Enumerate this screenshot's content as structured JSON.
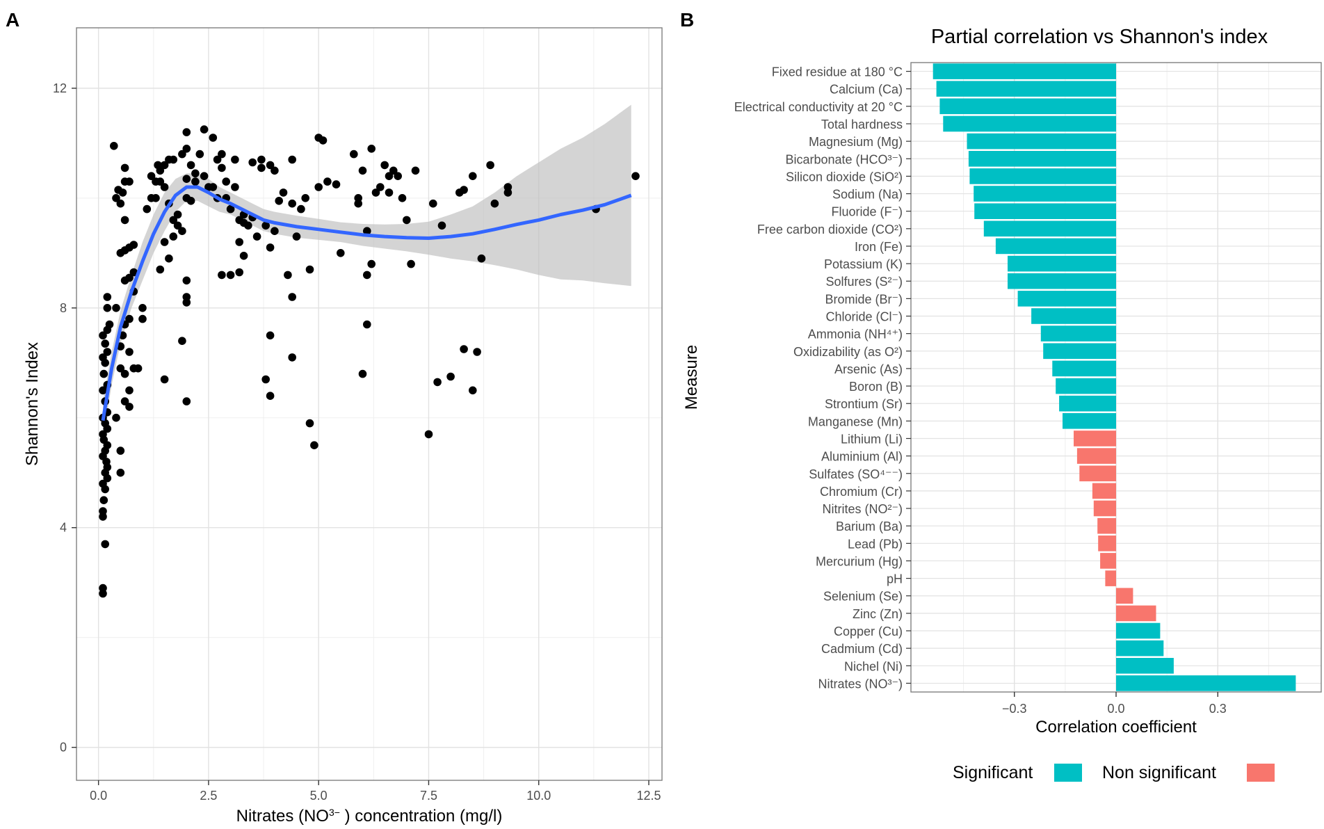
{
  "panel_labels": {
    "a": "A",
    "b": "B"
  },
  "chart_data": [
    {
      "type": "scatter",
      "panel": "A",
      "title": "",
      "xlabel_main": "Nitrates (NO",
      "xlabel_sup": "3−",
      "xlabel_rest": "  ) concentration (mg/l)",
      "ylabel": "Shannon's Index",
      "xlim": [
        -0.5,
        12.8
      ],
      "ylim": [
        -0.6,
        13.1
      ],
      "xticks": [
        0,
        2.5,
        5,
        7.5,
        10,
        12.5
      ],
      "xtick_labels": [
        "0.0",
        "2.5",
        "5.0",
        "7.5",
        "10.0",
        "12.5"
      ],
      "yticks": [
        0,
        4,
        8,
        12
      ],
      "ytick_labels": [
        "0",
        "4",
        "8",
        "12"
      ],
      "grid": true,
      "colors": {
        "points": "#000000",
        "smooth": "#3366ff",
        "ribbon": "#bdbdbd",
        "grid": "#e2e2e2",
        "panel_border": "#7f7f7f"
      },
      "points": [
        [
          0.1,
          2.8
        ],
        [
          0.1,
          2.9
        ],
        [
          0.15,
          3.7
        ],
        [
          0.1,
          4.2
        ],
        [
          0.1,
          4.3
        ],
        [
          0.12,
          4.5
        ],
        [
          0.15,
          4.7
        ],
        [
          0.1,
          4.8
        ],
        [
          0.2,
          4.9
        ],
        [
          0.15,
          5.0
        ],
        [
          0.2,
          5.1
        ],
        [
          0.18,
          5.2
        ],
        [
          0.1,
          5.3
        ],
        [
          0.15,
          5.4
        ],
        [
          0.2,
          5.5
        ],
        [
          0.12,
          5.6
        ],
        [
          0.1,
          5.7
        ],
        [
          0.2,
          5.8
        ],
        [
          0.15,
          5.9
        ],
        [
          0.1,
          6.0
        ],
        [
          0.2,
          6.1
        ],
        [
          0.15,
          6.3
        ],
        [
          0.1,
          6.5
        ],
        [
          0.2,
          6.6
        ],
        [
          0.12,
          6.8
        ],
        [
          0.15,
          7.0
        ],
        [
          0.1,
          7.1
        ],
        [
          0.2,
          7.2
        ],
        [
          0.15,
          7.35
        ],
        [
          0.1,
          7.5
        ],
        [
          0.2,
          7.6
        ],
        [
          0.25,
          7.7
        ],
        [
          0.2,
          8.0
        ],
        [
          0.2,
          8.2
        ],
        [
          0.5,
          5.0
        ],
        [
          0.5,
          5.4
        ],
        [
          0.4,
          6.0
        ],
        [
          0.6,
          6.3
        ],
        [
          0.7,
          6.2
        ],
        [
          0.7,
          6.5
        ],
        [
          0.6,
          6.8
        ],
        [
          0.5,
          6.9
        ],
        [
          0.8,
          6.9
        ],
        [
          0.9,
          6.9
        ],
        [
          0.7,
          7.2
        ],
        [
          0.5,
          7.3
        ],
        [
          0.55,
          7.5
        ],
        [
          0.6,
          7.7
        ],
        [
          0.7,
          7.8
        ],
        [
          0.4,
          8.0
        ],
        [
          0.8,
          8.3
        ],
        [
          0.6,
          8.5
        ],
        [
          0.7,
          8.55
        ],
        [
          0.8,
          8.65
        ],
        [
          0.5,
          9.0
        ],
        [
          0.6,
          9.05
        ],
        [
          0.7,
          9.1
        ],
        [
          0.8,
          9.15
        ],
        [
          0.6,
          9.6
        ],
        [
          0.5,
          9.9
        ],
        [
          0.4,
          10.0
        ],
        [
          0.55,
          10.1
        ],
        [
          0.45,
          10.15
        ],
        [
          0.6,
          10.3
        ],
        [
          0.35,
          10.95
        ],
        [
          0.7,
          10.3
        ],
        [
          0.6,
          10.55
        ],
        [
          1.0,
          7.8
        ],
        [
          1.0,
          8.0
        ],
        [
          1.1,
          9.8
        ],
        [
          1.2,
          10.0
        ],
        [
          1.2,
          10.4
        ],
        [
          1.3,
          10.3
        ],
        [
          1.35,
          10.6
        ],
        [
          1.4,
          10.5
        ],
        [
          1.5,
          10.2
        ],
        [
          1.5,
          10.6
        ],
        [
          1.6,
          10.7
        ],
        [
          1.6,
          9.9
        ],
        [
          1.7,
          9.6
        ],
        [
          1.8,
          9.5
        ],
        [
          1.9,
          9.4
        ],
        [
          1.7,
          9.3
        ],
        [
          1.5,
          9.2
        ],
        [
          1.4,
          8.7
        ],
        [
          1.6,
          8.9
        ],
        [
          1.5,
          6.7
        ],
        [
          1.8,
          9.7
        ],
        [
          1.9,
          10.8
        ],
        [
          2.0,
          10.9
        ],
        [
          2.0,
          11.2
        ],
        [
          2.1,
          10.6
        ],
        [
          2.2,
          10.3
        ],
        [
          2.1,
          9.95
        ],
        [
          2.0,
          10.0
        ],
        [
          2.3,
          10.8
        ],
        [
          2.4,
          11.25
        ],
        [
          2.4,
          10.4
        ],
        [
          2.5,
          10.2
        ],
        [
          2.6,
          11.1
        ],
        [
          2.7,
          10.0
        ],
        [
          2.8,
          10.55
        ],
        [
          2.9,
          10.3
        ],
        [
          3.0,
          9.8
        ],
        [
          3.1,
          10.2
        ],
        [
          3.2,
          9.6
        ],
        [
          3.3,
          9.7
        ],
        [
          3.3,
          9.55
        ],
        [
          3.4,
          9.5
        ],
        [
          3.5,
          9.65
        ],
        [
          3.2,
          9.2
        ],
        [
          3.3,
          8.95
        ],
        [
          2.8,
          10.8
        ],
        [
          3.6,
          9.3
        ],
        [
          3.8,
          9.5
        ],
        [
          3.9,
          9.1
        ],
        [
          4.0,
          9.4
        ],
        [
          4.1,
          9.95
        ],
        [
          4.2,
          10.1
        ],
        [
          4.4,
          9.9
        ],
        [
          4.5,
          9.3
        ],
        [
          4.6,
          9.8
        ],
        [
          4.7,
          10.0
        ],
        [
          4.8,
          8.7
        ],
        [
          4.3,
          8.6
        ],
        [
          4.4,
          8.2
        ],
        [
          4.4,
          7.1
        ],
        [
          3.8,
          6.7
        ],
        [
          3.9,
          6.4
        ],
        [
          3.9,
          7.5
        ],
        [
          2.0,
          6.3
        ],
        [
          2.0,
          8.1
        ],
        [
          2.0,
          8.2
        ],
        [
          2.0,
          8.5
        ],
        [
          1.9,
          7.4
        ],
        [
          2.8,
          8.6
        ],
        [
          3.0,
          8.6
        ],
        [
          3.2,
          8.65
        ],
        [
          5.0,
          11.1
        ],
        [
          5.1,
          11.05
        ],
        [
          5.0,
          10.2
        ],
        [
          5.2,
          10.3
        ],
        [
          5.4,
          10.25
        ],
        [
          5.5,
          9.0
        ],
        [
          5.8,
          10.8
        ],
        [
          5.9,
          10.0
        ],
        [
          5.9,
          9.9
        ],
        [
          6.0,
          10.5
        ],
        [
          6.1,
          9.4
        ],
        [
          6.1,
          8.6
        ],
        [
          6.2,
          8.8
        ],
        [
          6.2,
          10.9
        ],
        [
          6.3,
          10.1
        ],
        [
          6.4,
          10.2
        ],
        [
          6.5,
          10.6
        ],
        [
          6.6,
          10.1
        ],
        [
          6.6,
          10.4
        ],
        [
          6.7,
          10.5
        ],
        [
          6.8,
          10.4
        ],
        [
          6.9,
          10.0
        ],
        [
          7.0,
          9.6
        ],
        [
          7.1,
          8.8
        ],
        [
          7.2,
          10.5
        ],
        [
          6.1,
          7.7
        ],
        [
          6.0,
          6.8
        ],
        [
          4.8,
          5.9
        ],
        [
          4.9,
          5.5
        ],
        [
          7.5,
          5.7
        ],
        [
          7.7,
          6.65
        ],
        [
          8.0,
          6.75
        ],
        [
          8.2,
          10.1
        ],
        [
          8.3,
          10.15
        ],
        [
          8.3,
          7.25
        ],
        [
          8.5,
          10.4
        ],
        [
          8.6,
          7.2
        ],
        [
          8.7,
          8.9
        ],
        [
          8.5,
          6.5
        ],
        [
          8.9,
          10.6
        ],
        [
          9.0,
          9.9
        ],
        [
          9.3,
          10.1
        ],
        [
          9.3,
          10.2
        ],
        [
          7.8,
          9.5
        ],
        [
          7.6,
          9.9
        ],
        [
          11.3,
          9.8
        ],
        [
          12.2,
          10.4
        ],
        [
          2.0,
          10.35
        ],
        [
          2.2,
          10.45
        ],
        [
          1.3,
          10.0
        ],
        [
          1.4,
          10.3
        ],
        [
          1.7,
          10.7
        ],
        [
          2.7,
          10.7
        ],
        [
          3.1,
          10.7
        ],
        [
          3.5,
          10.65
        ],
        [
          3.7,
          10.7
        ],
        [
          3.9,
          10.6
        ],
        [
          4.0,
          10.5
        ],
        [
          4.4,
          10.7
        ],
        [
          3.7,
          10.55
        ],
        [
          2.6,
          10.2
        ],
        [
          2.9,
          10.0
        ]
      ],
      "smooth": [
        [
          0.1,
          5.95
        ],
        [
          0.3,
          6.9
        ],
        [
          0.5,
          7.65
        ],
        [
          0.75,
          8.3
        ],
        [
          1.0,
          8.85
        ],
        [
          1.25,
          9.35
        ],
        [
          1.5,
          9.75
        ],
        [
          1.75,
          10.05
        ],
        [
          2.0,
          10.2
        ],
        [
          2.25,
          10.2
        ],
        [
          2.5,
          10.1
        ],
        [
          2.75,
          9.98
        ],
        [
          3.0,
          9.9
        ],
        [
          3.25,
          9.8
        ],
        [
          3.5,
          9.7
        ],
        [
          3.75,
          9.6
        ],
        [
          4.0,
          9.55
        ],
        [
          4.5,
          9.48
        ],
        [
          5.0,
          9.43
        ],
        [
          5.5,
          9.38
        ],
        [
          6.0,
          9.33
        ],
        [
          6.5,
          9.3
        ],
        [
          7.0,
          9.28
        ],
        [
          7.5,
          9.27
        ],
        [
          8.0,
          9.3
        ],
        [
          8.5,
          9.35
        ],
        [
          9.0,
          9.43
        ],
        [
          9.5,
          9.52
        ],
        [
          10.0,
          9.6
        ],
        [
          10.5,
          9.7
        ],
        [
          11.0,
          9.78
        ],
        [
          11.5,
          9.88
        ],
        [
          12.1,
          10.05
        ]
      ],
      "ribbon_upper": [
        [
          0.1,
          6.3
        ],
        [
          0.3,
          7.2
        ],
        [
          0.5,
          7.95
        ],
        [
          0.75,
          8.6
        ],
        [
          1.0,
          9.2
        ],
        [
          1.25,
          9.7
        ],
        [
          1.5,
          10.1
        ],
        [
          1.75,
          10.35
        ],
        [
          2.0,
          10.45
        ],
        [
          2.25,
          10.45
        ],
        [
          2.5,
          10.35
        ],
        [
          2.75,
          10.2
        ],
        [
          3.0,
          10.1
        ],
        [
          3.25,
          10.0
        ],
        [
          3.5,
          9.9
        ],
        [
          3.75,
          9.8
        ],
        [
          4.0,
          9.75
        ],
        [
          4.5,
          9.68
        ],
        [
          5.0,
          9.62
        ],
        [
          5.5,
          9.56
        ],
        [
          6.0,
          9.53
        ],
        [
          6.5,
          9.52
        ],
        [
          7.0,
          9.53
        ],
        [
          7.5,
          9.57
        ],
        [
          8.0,
          9.7
        ],
        [
          8.5,
          9.85
        ],
        [
          9.0,
          10.1
        ],
        [
          9.5,
          10.4
        ],
        [
          10.0,
          10.65
        ],
        [
          10.5,
          10.9
        ],
        [
          11.0,
          11.1
        ],
        [
          11.5,
          11.35
        ],
        [
          12.1,
          11.7
        ]
      ],
      "ribbon_lower": [
        [
          0.1,
          5.6
        ],
        [
          0.3,
          6.6
        ],
        [
          0.5,
          7.35
        ],
        [
          0.75,
          8.0
        ],
        [
          1.0,
          8.5
        ],
        [
          1.25,
          9.0
        ],
        [
          1.5,
          9.4
        ],
        [
          1.75,
          9.75
        ],
        [
          2.0,
          9.95
        ],
        [
          2.25,
          9.95
        ],
        [
          2.5,
          9.85
        ],
        [
          2.75,
          9.75
        ],
        [
          3.0,
          9.7
        ],
        [
          3.25,
          9.6
        ],
        [
          3.5,
          9.5
        ],
        [
          3.75,
          9.4
        ],
        [
          4.0,
          9.35
        ],
        [
          4.5,
          9.28
        ],
        [
          5.0,
          9.24
        ],
        [
          5.5,
          9.2
        ],
        [
          6.0,
          9.13
        ],
        [
          6.5,
          9.08
        ],
        [
          7.0,
          9.03
        ],
        [
          7.5,
          8.97
        ],
        [
          8.0,
          8.9
        ],
        [
          8.5,
          8.85
        ],
        [
          9.0,
          8.78
        ],
        [
          9.5,
          8.7
        ],
        [
          10.0,
          8.6
        ],
        [
          10.5,
          8.52
        ],
        [
          11.0,
          8.5
        ],
        [
          11.5,
          8.45
        ],
        [
          12.1,
          8.4
        ]
      ]
    },
    {
      "type": "bar",
      "orientation": "horizontal",
      "panel": "B",
      "title": "Partial correlation vs Shannon's index",
      "xlabel": "Correlation coefficient",
      "ylabel": "Measure",
      "xlim": [
        -0.605,
        0.605
      ],
      "xticks": [
        -0.3,
        0.0,
        0.3
      ],
      "xtick_labels": [
        "−0.3",
        "0.0",
        "0.3"
      ],
      "grid": true,
      "legend_position": "bottom",
      "legend": [
        {
          "label": "Significant",
          "color": "#00bfc4"
        },
        {
          "label": "Non significant",
          "color": "#f8766d"
        }
      ],
      "categories": [
        "Fixed residue at 180 °C",
        "Calcium (Ca)",
        "Electrical conductivity at 20 °C",
        "Total hardness",
        "Magnesium (Mg)",
        "Bicarbonate (HCO³⁻)",
        "Silicon dioxide (SiO²)",
        "Sodium (Na)",
        "Fluoride (F⁻)",
        "Free carbon dioxide (CO²)",
        "Iron (Fe)",
        "Potassium (K)",
        "Solfures (S²⁻)",
        "Bromide (Br⁻)",
        "Chloride (Cl⁻)",
        "Ammonia (NH⁴⁺)",
        "Oxidizability (as O²)",
        "Arsenic (As)",
        "Boron (B)",
        "Strontium (Sr)",
        "Manganese (Mn)",
        "Lithium (Li)",
        "Aluminium (Al)",
        "Sulfates (SO⁴⁻⁻)",
        "Chromium (Cr)",
        "Nitrites (NO²⁻)",
        "Barium (Ba)",
        "Lead (Pb)",
        "Mercurium (Hg)",
        "pH",
        "Selenium (Se)",
        "Zinc (Zn)",
        "Copper (Cu)",
        "Cadmium (Cd)",
        "Nichel (Ni)",
        "Nitrates (NO³⁻)"
      ],
      "values": [
        -0.54,
        -0.53,
        -0.52,
        -0.51,
        -0.44,
        -0.435,
        -0.432,
        -0.42,
        -0.418,
        -0.39,
        -0.355,
        -0.32,
        -0.32,
        -0.29,
        -0.25,
        -0.222,
        -0.215,
        -0.188,
        -0.178,
        -0.168,
        -0.158,
        -0.125,
        -0.115,
        -0.108,
        -0.07,
        -0.066,
        -0.055,
        -0.053,
        -0.047,
        -0.032,
        0.05,
        0.118,
        0.13,
        0.14,
        0.17,
        0.53
      ],
      "significant": [
        true,
        true,
        true,
        true,
        true,
        true,
        true,
        true,
        true,
        true,
        true,
        true,
        true,
        true,
        true,
        true,
        true,
        true,
        true,
        true,
        true,
        false,
        false,
        false,
        false,
        false,
        false,
        false,
        false,
        false,
        false,
        false,
        true,
        true,
        true,
        true
      ]
    }
  ]
}
